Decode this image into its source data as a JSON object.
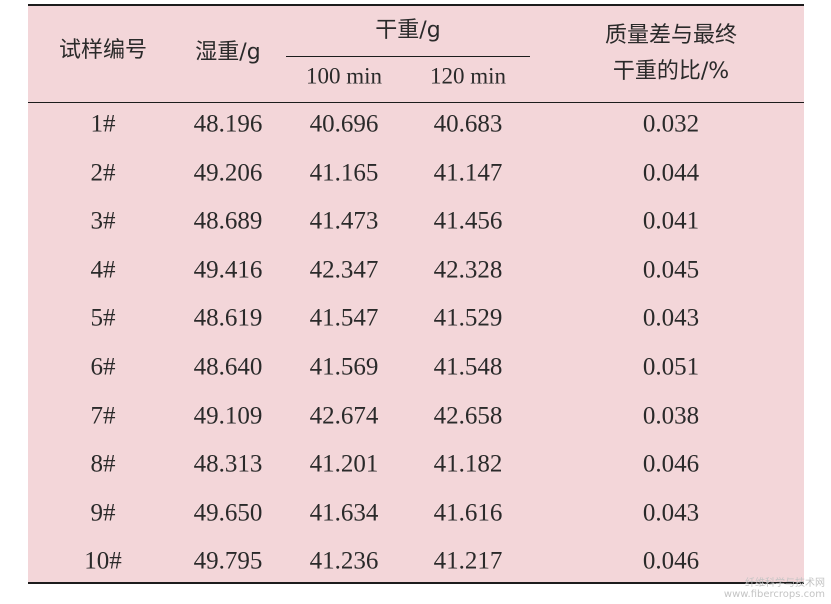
{
  "table": {
    "headers": {
      "sample_no": "试样编号",
      "wet_weight": "湿重/g",
      "dry_weight": "干重/g",
      "dry_100": "100 min",
      "dry_120": "120 min",
      "ratio_line1": "质量差与最终",
      "ratio_line2": "干重的比/%"
    },
    "rows": [
      {
        "id": "1#",
        "wet": "48.196",
        "d100": "40.696",
        "d120": "40.683",
        "ratio": "0.032"
      },
      {
        "id": "2#",
        "wet": "49.206",
        "d100": "41.165",
        "d120": "41.147",
        "ratio": "0.044"
      },
      {
        "id": "3#",
        "wet": "48.689",
        "d100": "41.473",
        "d120": "41.456",
        "ratio": "0.041"
      },
      {
        "id": "4#",
        "wet": "49.416",
        "d100": "42.347",
        "d120": "42.328",
        "ratio": "0.045"
      },
      {
        "id": "5#",
        "wet": "48.619",
        "d100": "41.547",
        "d120": "41.529",
        "ratio": "0.043"
      },
      {
        "id": "6#",
        "wet": "48.640",
        "d100": "41.569",
        "d120": "41.548",
        "ratio": "0.051"
      },
      {
        "id": "7#",
        "wet": "49.109",
        "d100": "42.674",
        "d120": "42.658",
        "ratio": "0.038"
      },
      {
        "id": "8#",
        "wet": "48.313",
        "d100": "41.201",
        "d120": "41.182",
        "ratio": "0.046"
      },
      {
        "id": "9#",
        "wet": "49.650",
        "d100": "41.634",
        "d120": "41.616",
        "ratio": "0.043"
      },
      {
        "id": "10#",
        "wet": "49.795",
        "d100": "41.236",
        "d120": "41.217",
        "ratio": "0.046"
      }
    ]
  },
  "watermark": {
    "line1": "纤维科学与技术网",
    "line2": "www.fibercrops.com"
  }
}
